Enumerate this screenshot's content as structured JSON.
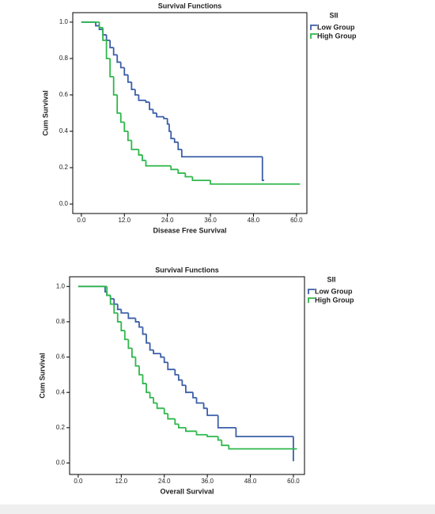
{
  "chart_data": [
    {
      "type": "step",
      "title": "Survival Functions",
      "x_label": "Disease  Free Survival",
      "y_label": "Cum Survival",
      "legend_title": "SII",
      "xlim": [
        -2.4,
        62.9
      ],
      "ylim": [
        -0.052,
        1.052
      ],
      "xticks": [
        {
          "value": 0,
          "label": "0.0"
        },
        {
          "value": 12,
          "label": "12.0"
        },
        {
          "value": 24,
          "label": "24.0"
        },
        {
          "value": 36,
          "label": "36.0"
        },
        {
          "value": 48,
          "label": "48.0"
        },
        {
          "value": 60,
          "label": "60.0"
        }
      ],
      "yticks": [
        {
          "value": 0,
          "label": "0.0"
        },
        0.2,
        0.4,
        0.6,
        0.8,
        {
          "value": 1,
          "label": "1.0"
        }
      ],
      "series": [
        {
          "name": "Low Group",
          "color": "#3b5ea8",
          "x": [
            0,
            4,
            5,
            6,
            7,
            8,
            9,
            10,
            11,
            12,
            13,
            14,
            15,
            16,
            18,
            19,
            20,
            21,
            23,
            24,
            24.5,
            25,
            26,
            27,
            28,
            50.5,
            51
          ],
          "values": [
            1.0,
            0.98,
            0.96,
            0.93,
            0.9,
            0.86,
            0.82,
            0.78,
            0.75,
            0.71,
            0.67,
            0.63,
            0.6,
            0.57,
            0.56,
            0.52,
            0.5,
            0.48,
            0.47,
            0.44,
            0.4,
            0.36,
            0.34,
            0.3,
            0.26,
            0.13,
            0.13
          ]
        },
        {
          "name": "High Group",
          "color": "#2db84b",
          "x": [
            0,
            5,
            6,
            7,
            8,
            9,
            10,
            11,
            12,
            13,
            14,
            16,
            17,
            18,
            25,
            27,
            29,
            31,
            36,
            61
          ],
          "values": [
            1.0,
            0.97,
            0.9,
            0.8,
            0.7,
            0.6,
            0.5,
            0.45,
            0.4,
            0.35,
            0.3,
            0.27,
            0.24,
            0.21,
            0.19,
            0.17,
            0.15,
            0.13,
            0.11,
            0.11
          ]
        }
      ]
    },
    {
      "type": "step",
      "title": "Survival Functions",
      "x_label": "Overall Survival",
      "y_label": "Cum Survival",
      "legend_title": "SII",
      "xlim": [
        -2.4,
        63.1
      ],
      "ylim": [
        -0.065,
        1.055
      ],
      "xticks": [
        {
          "value": 0,
          "label": "0.0"
        },
        {
          "value": 12,
          "label": "12.0"
        },
        {
          "value": 24,
          "label": "24.0"
        },
        {
          "value": 36,
          "label": "36.0"
        },
        {
          "value": 48,
          "label": "48.0"
        },
        {
          "value": 60,
          "label": "60.0"
        }
      ],
      "yticks": [
        {
          "value": 0,
          "label": "0.0"
        },
        0.2,
        0.4,
        0.6,
        0.8,
        {
          "value": 1,
          "label": "1.0"
        }
      ],
      "series": [
        {
          "name": "Low Group",
          "color": "#3b5ea8",
          "x": [
            0,
            7.5,
            8,
            9,
            10,
            11,
            12,
            14,
            16,
            17,
            18,
            19,
            20,
            21,
            23,
            24,
            25,
            27,
            28,
            29,
            30,
            32,
            33,
            35,
            36,
            39,
            44,
            60
          ],
          "values": [
            1.0,
            0.97,
            0.95,
            0.93,
            0.9,
            0.87,
            0.85,
            0.82,
            0.8,
            0.77,
            0.73,
            0.68,
            0.64,
            0.62,
            0.6,
            0.57,
            0.53,
            0.5,
            0.47,
            0.44,
            0.4,
            0.37,
            0.34,
            0.31,
            0.27,
            0.2,
            0.15,
            0.01
          ]
        },
        {
          "name": "High Group",
          "color": "#2db84b",
          "x": [
            0,
            8,
            9,
            10,
            11,
            12,
            13,
            14,
            15,
            16,
            17,
            18,
            19,
            20,
            21,
            22,
            24,
            25,
            27,
            28,
            30,
            33,
            36,
            39,
            40,
            42,
            61
          ],
          "values": [
            1.0,
            0.95,
            0.9,
            0.85,
            0.8,
            0.75,
            0.7,
            0.65,
            0.6,
            0.55,
            0.5,
            0.45,
            0.4,
            0.37,
            0.34,
            0.31,
            0.28,
            0.25,
            0.22,
            0.2,
            0.18,
            0.16,
            0.15,
            0.13,
            0.1,
            0.08,
            0.08
          ]
        }
      ]
    }
  ]
}
